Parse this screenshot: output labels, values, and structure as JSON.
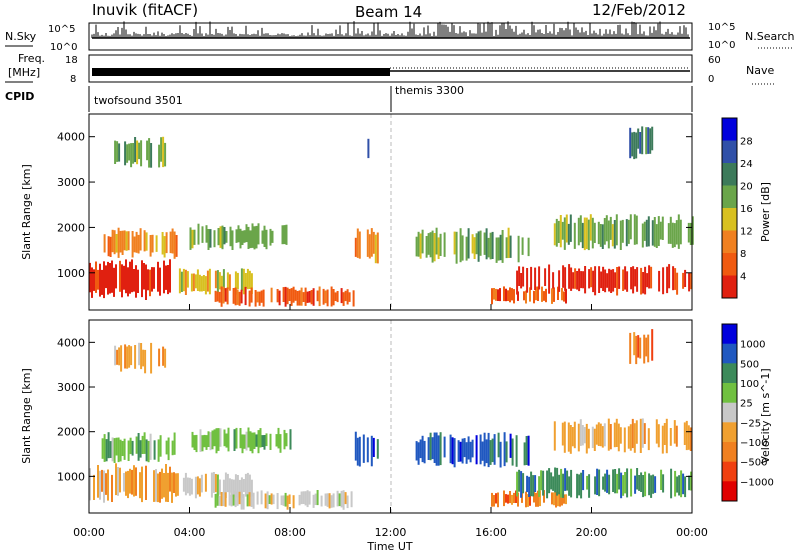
{
  "header": {
    "station": "Inuvik (fitACF)",
    "beam": "Beam 14",
    "date": "12/Feb/2012"
  },
  "status_panels": {
    "nsky_label": "N.Sky",
    "nsearch_label": "N.Search",
    "freq_label_line1": "Freq.",
    "freq_label_line2": "[MHz]",
    "nave_label": "Nave",
    "cpid_label": "CPID",
    "nsky_ticks": [
      "10^5",
      "10^0"
    ],
    "nsearch_ticks": [
      "10^5",
      "10^0"
    ],
    "freq_ticks": [
      "18",
      "8"
    ],
    "nave_ticks": [
      "60",
      "0"
    ],
    "cpid_segments": [
      {
        "name": "twofsound 3501",
        "start_hour": 0,
        "end_hour": 12
      },
      {
        "name": "themis 3300",
        "start_hour": 12,
        "end_hour": 24
      }
    ]
  },
  "colors": {
    "power_scale": [
      "#0000dd",
      "#3050a8",
      "#3c7a5a",
      "#6aa54a",
      "#d8c020",
      "#f08020",
      "#f05a10",
      "#e02010"
    ],
    "velocity_scale": [
      "#0000dd",
      "#2058c0",
      "#3c8a5a",
      "#70c040",
      "#c8c8c8",
      "#f0a030",
      "#f08020",
      "#f04010",
      "#e00000"
    ]
  },
  "chart_data": [
    {
      "type": "heatmap",
      "name": "power",
      "xlabel": "Time UT",
      "ylabel": "Slant Range [km]",
      "xlim": [
        0,
        24
      ],
      "ylim": [
        180,
        4500
      ],
      "x_ticks": [
        "00:00",
        "04:00",
        "08:00",
        "12:00",
        "16:00",
        "20:00",
        "00:00"
      ],
      "y_ticks": [
        1000,
        2000,
        3000,
        4000
      ],
      "colorbar": {
        "label": "Power [dB]",
        "ticks": [
          "28",
          "24",
          "20",
          "16",
          "12",
          "8",
          "4"
        ]
      },
      "regions": [
        {
          "t0": 0.0,
          "t1": 3.5,
          "r0": 400,
          "r1": 1300,
          "level": 7
        },
        {
          "t0": 0.5,
          "t1": 3.5,
          "r0": 1300,
          "r1": 2000,
          "level": 5
        },
        {
          "t0": 1.0,
          "t1": 3.0,
          "r0": 3300,
          "r1": 4000,
          "level": 3
        },
        {
          "t0": 3.5,
          "t1": 6.5,
          "r0": 500,
          "r1": 1100,
          "level": 4
        },
        {
          "t0": 4.0,
          "t1": 8.0,
          "r0": 1500,
          "r1": 2100,
          "level": 3
        },
        {
          "t0": 5.0,
          "t1": 10.5,
          "r0": 250,
          "r1": 700,
          "level": 6
        },
        {
          "t0": 10.5,
          "t1": 11.5,
          "r0": 1200,
          "r1": 2000,
          "level": 5
        },
        {
          "t0": 11.0,
          "t1": 11.2,
          "r0": 3300,
          "r1": 4200,
          "level": 1
        },
        {
          "t0": 13.0,
          "t1": 17.5,
          "r0": 1200,
          "r1": 2000,
          "level": 3
        },
        {
          "t0": 16.0,
          "t1": 19.0,
          "r0": 300,
          "r1": 700,
          "level": 6
        },
        {
          "t0": 17.0,
          "t1": 24.0,
          "r0": 500,
          "r1": 1200,
          "level": 7
        },
        {
          "t0": 18.5,
          "t1": 24.0,
          "r0": 1500,
          "r1": 2300,
          "level": 3
        },
        {
          "t0": 21.5,
          "t1": 22.5,
          "r0": 3500,
          "r1": 4300,
          "level": 2
        }
      ]
    },
    {
      "type": "heatmap",
      "name": "velocity",
      "xlabel": "Time UT",
      "ylabel": "Slant Range [km]",
      "xlim": [
        0,
        24
      ],
      "ylim": [
        180,
        4500
      ],
      "x_ticks": [
        "00:00",
        "04:00",
        "08:00",
        "12:00",
        "16:00",
        "20:00",
        "00:00"
      ],
      "y_ticks": [
        1000,
        2000,
        3000,
        4000
      ],
      "colorbar": {
        "label": "Velocity [m s^-1]",
        "ticks": [
          "1000",
          "500",
          "100",
          "25",
          "−25",
          "−100",
          "−500",
          "−1000"
        ]
      },
      "regions": [
        {
          "t0": 0.0,
          "t1": 3.5,
          "r0": 400,
          "r1": 1300,
          "level": 5
        },
        {
          "t0": 0.5,
          "t1": 3.5,
          "r0": 1300,
          "r1": 2000,
          "level": 3
        },
        {
          "t0": 1.0,
          "t1": 3.0,
          "r0": 3300,
          "r1": 4000,
          "level": 5
        },
        {
          "t0": 3.5,
          "t1": 6.5,
          "r0": 500,
          "r1": 1100,
          "level": 4
        },
        {
          "t0": 4.0,
          "t1": 8.0,
          "r0": 1500,
          "r1": 2100,
          "level": 3
        },
        {
          "t0": 5.0,
          "t1": 10.5,
          "r0": 250,
          "r1": 700,
          "level": 4
        },
        {
          "t0": 10.5,
          "t1": 11.5,
          "r0": 1200,
          "r1": 2000,
          "level": 1
        },
        {
          "t0": 13.0,
          "t1": 17.5,
          "r0": 1200,
          "r1": 2000,
          "level": 1
        },
        {
          "t0": 16.0,
          "t1": 19.0,
          "r0": 300,
          "r1": 700,
          "level": 6
        },
        {
          "t0": 17.0,
          "t1": 24.0,
          "r0": 500,
          "r1": 1200,
          "level": 2
        },
        {
          "t0": 18.5,
          "t1": 24.0,
          "r0": 1500,
          "r1": 2300,
          "level": 5
        },
        {
          "t0": 21.5,
          "t1": 22.5,
          "r0": 3500,
          "r1": 4300,
          "level": 6
        }
      ]
    }
  ]
}
